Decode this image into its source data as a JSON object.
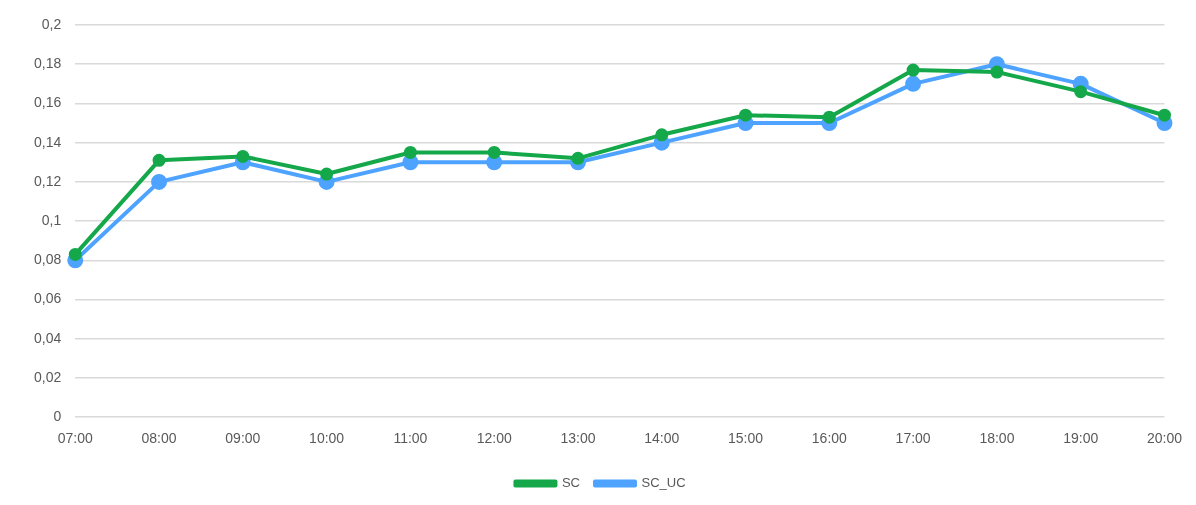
{
  "chart_data": {
    "type": "line",
    "categories": [
      "07:00",
      "08:00",
      "09:00",
      "10:00",
      "11:00",
      "12:00",
      "13:00",
      "14:00",
      "15:00",
      "16:00",
      "17:00",
      "18:00",
      "19:00",
      "20:00"
    ],
    "series": [
      {
        "name": "SC",
        "color": "#14a84a",
        "values": [
          0.083,
          0.131,
          0.133,
          0.124,
          0.135,
          0.135,
          0.132,
          0.144,
          0.154,
          0.153,
          0.177,
          0.176,
          0.166,
          0.154
        ]
      },
      {
        "name": "SC_UC",
        "color": "#4da3ff",
        "values": [
          0.08,
          0.12,
          0.13,
          0.12,
          0.13,
          0.13,
          0.13,
          0.14,
          0.15,
          0.15,
          0.17,
          0.18,
          0.17,
          0.15
        ]
      }
    ],
    "ylim": [
      0,
      0.2
    ],
    "yticks": [
      {
        "value": 0,
        "label": "0"
      },
      {
        "value": 0.02,
        "label": "0,02"
      },
      {
        "value": 0.04,
        "label": "0,04"
      },
      {
        "value": 0.06,
        "label": "0,06"
      },
      {
        "value": 0.08,
        "label": "0,08"
      },
      {
        "value": 0.1,
        "label": "0,1"
      },
      {
        "value": 0.12,
        "label": "0,12"
      },
      {
        "value": 0.14,
        "label": "0,14"
      },
      {
        "value": 0.16,
        "label": "0,16"
      },
      {
        "value": 0.18,
        "label": "0,18"
      },
      {
        "value": 0.2,
        "label": "0,2"
      }
    ],
    "grid": "y",
    "legend": "bottom",
    "marker": "circle",
    "line_style": "solid"
  }
}
